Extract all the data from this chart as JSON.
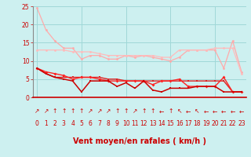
{
  "x": [
    0,
    1,
    2,
    3,
    4,
    5,
    6,
    7,
    8,
    9,
    10,
    11,
    12,
    13,
    14,
    15,
    16,
    17,
    18,
    19,
    20,
    21,
    22,
    23
  ],
  "line1": [
    24.5,
    18.5,
    15.5,
    13.5,
    13.5,
    10.5,
    11.5,
    11.5,
    10.5,
    10.5,
    11.5,
    11.0,
    11.5,
    11.0,
    10.5,
    10.0,
    11.0,
    13.0,
    13.0,
    13.0,
    13.0,
    8.0,
    15.5,
    7.0
  ],
  "line2": [
    13.0,
    13.0,
    13.0,
    13.0,
    12.5,
    12.5,
    12.5,
    12.0,
    11.5,
    11.5,
    11.5,
    11.5,
    11.5,
    11.5,
    11.0,
    11.0,
    13.0,
    13.0,
    13.0,
    13.0,
    13.5,
    13.5,
    13.5,
    6.5
  ],
  "line3": [
    8.0,
    7.0,
    6.5,
    6.0,
    5.0,
    5.5,
    5.5,
    5.0,
    4.5,
    4.5,
    4.5,
    4.5,
    4.5,
    3.5,
    4.5,
    4.5,
    5.0,
    3.0,
    3.0,
    3.0,
    3.0,
    5.5,
    1.5,
    1.5
  ],
  "line4": [
    8.0,
    6.5,
    5.5,
    5.0,
    4.5,
    1.5,
    4.5,
    4.5,
    4.5,
    3.0,
    4.0,
    2.5,
    4.5,
    2.0,
    1.5,
    2.5,
    2.5,
    2.5,
    3.0,
    3.0,
    3.0,
    1.5,
    1.5,
    1.5
  ],
  "line5": [
    8.0,
    6.5,
    5.5,
    5.5,
    5.5,
    5.5,
    5.5,
    5.5,
    5.0,
    5.0,
    4.5,
    4.5,
    4.5,
    4.5,
    4.5,
    4.5,
    4.5,
    4.5,
    4.5,
    4.5,
    4.5,
    4.5,
    1.5,
    1.5
  ],
  "xlabel": "Vent moyen/en rafales ( km/h )",
  "ylim": [
    0,
    25
  ],
  "xlim": [
    -0.5,
    23.5
  ],
  "bg_color": "#cdf0f0",
  "grid_color": "#a0d8d8",
  "line1_color": "#ffaaaa",
  "line2_color": "#ffbbbb",
  "line3_color": "#ff2222",
  "line4_color": "#cc0000",
  "line5_color": "#dd2222",
  "wind_arrows": [
    "↗",
    "↗",
    "↑",
    "↑",
    "↑",
    "↑",
    "↗",
    "↗",
    "↗",
    "↑",
    "↑",
    "↗",
    "↑",
    "↑",
    "←",
    "↑",
    "↖",
    "←",
    "↖",
    "←",
    "←",
    "←",
    "←",
    "←"
  ],
  "tick_fontsize": 5.5,
  "arrow_fontsize": 5.5,
  "label_fontsize": 7.0
}
